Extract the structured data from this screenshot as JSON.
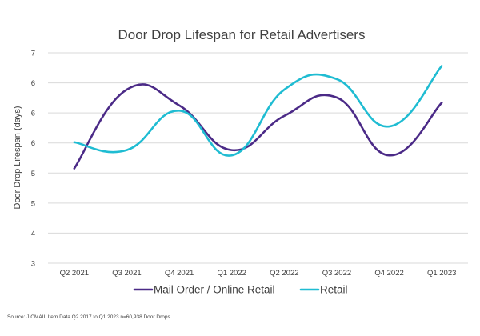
{
  "chart_data": {
    "type": "line",
    "title": "Door Drop Lifespan for Retail Advertisers",
    "ylabel": "Door Drop Lifespan (days)",
    "xlabel": "",
    "categories": [
      "Q2 2021",
      "Q3 2021",
      "Q4 2021",
      "Q1 2022",
      "Q2 2022",
      "Q3 2022",
      "Q4 2022",
      "Q1 2023"
    ],
    "y_ticks": [
      "3",
      "4",
      "5",
      "5",
      "6",
      "6",
      "6",
      "7"
    ],
    "ylim": [
      3,
      7
    ],
    "grid": true,
    "legend_position": "bottom",
    "series": [
      {
        "name": "Mail Order / Online Retail",
        "color": "#4b2a87",
        "values": [
          4.8,
          6.3,
          6.0,
          5.15,
          5.8,
          6.15,
          5.05,
          6.05
        ]
      },
      {
        "name": "Retail",
        "color": "#1fbcd2",
        "values": [
          5.3,
          5.15,
          5.9,
          5.05,
          6.3,
          6.5,
          5.6,
          6.75
        ]
      }
    ],
    "source": "Source: JICMAIL Item Data Q2 2017 to Q1 2023 n=60,938 Door Drops"
  }
}
